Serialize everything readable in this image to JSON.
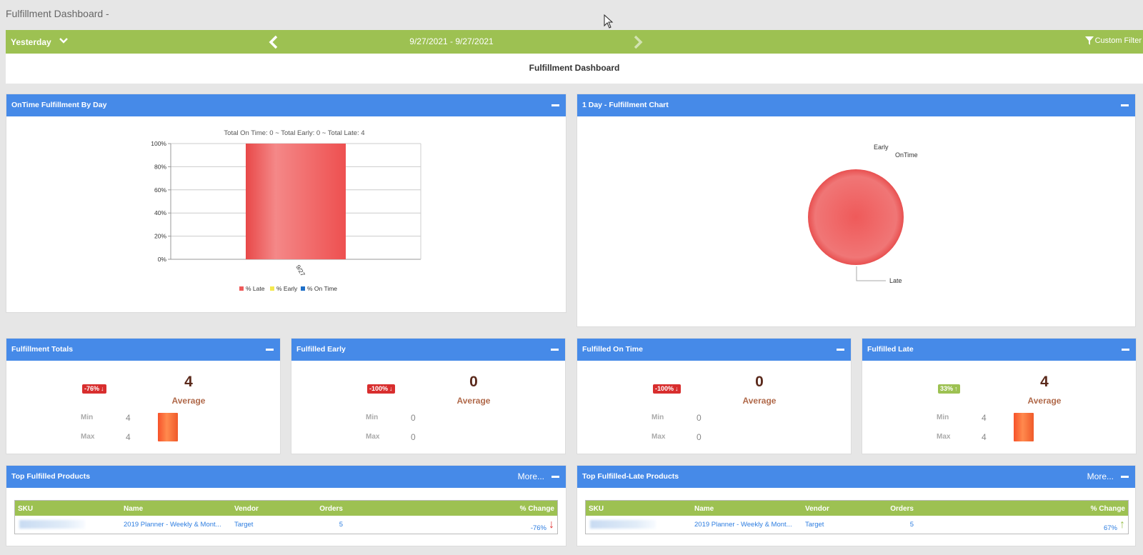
{
  "page_title": "Fulfillment Dashboard -",
  "filter_bar": {
    "range_label": "Yesterday",
    "date_range": "9/27/2021 - 9/27/2021",
    "custom_filter": "Custom Filter"
  },
  "dashboard_title": "Fulfillment Dashboard",
  "ontime_panel": {
    "title": "OnTime Fulfillment By Day",
    "chart_title": "Total On Time: 0 ~ Total Early: 0 ~ Total Late: 4"
  },
  "pie_panel": {
    "title": "1 Day - Fulfillment Chart"
  },
  "chart_data": [
    {
      "type": "bar",
      "title": "Total On Time: 0 ~ Total Early: 0 ~ Total Late: 4",
      "categories": [
        "9/27"
      ],
      "series": [
        {
          "name": "% Late",
          "values": [
            100
          ],
          "color": "#ef5a5a"
        },
        {
          "name": "% Early",
          "values": [
            0
          ],
          "color": "#f4e94e"
        },
        {
          "name": "% On Time",
          "values": [
            0
          ],
          "color": "#1e6fc8"
        }
      ],
      "stacked": true,
      "ylim": [
        0,
        100
      ],
      "yticks": [
        "0%",
        "20%",
        "40%",
        "60%",
        "80%",
        "100%"
      ],
      "grid": true,
      "legend": "bottom"
    },
    {
      "type": "pie",
      "labels": [
        "Early",
        "OnTime",
        "Late"
      ],
      "values": [
        0,
        0,
        4
      ],
      "colors": [
        "#f4e94e",
        "#1e6fc8",
        "#ef5a5a"
      ]
    }
  ],
  "stats": [
    {
      "title": "Fulfillment Totals",
      "badge": "-76%",
      "arrow": "↓",
      "badge_color": "red",
      "value": "4",
      "avg_label": "Average",
      "min_label": "Min",
      "min": "4",
      "max_label": "Max",
      "max": "4",
      "bar": true
    },
    {
      "title": "Fulfilled Early",
      "badge": "-100%",
      "arrow": "↓",
      "badge_color": "red",
      "value": "0",
      "avg_label": "Average",
      "min_label": "Min",
      "min": "0",
      "max_label": "Max",
      "max": "0",
      "bar": false
    },
    {
      "title": "Fulfilled On Time",
      "badge": "-100%",
      "arrow": "↓",
      "badge_color": "red",
      "value": "0",
      "avg_label": "Average",
      "min_label": "Min",
      "min": "0",
      "max_label": "Max",
      "max": "0",
      "bar": false
    },
    {
      "title": "Fulfilled Late",
      "badge": "33%",
      "arrow": "↑",
      "badge_color": "green",
      "value": "4",
      "avg_label": "Average",
      "min_label": "Min",
      "min": "4",
      "max_label": "Max",
      "max": "4",
      "bar": true
    }
  ],
  "top_products": {
    "title": "Top Fulfilled Products",
    "more": "More...",
    "columns": [
      "SKU",
      "Name",
      "Orders",
      "Vendor",
      "% Change"
    ],
    "rows": [
      {
        "name": "2019 Planner - Weekly & Mont...",
        "orders": "5",
        "vendor": "Target",
        "change": "-76%",
        "arrow": "↓",
        "arrow_color": "#e03232"
      }
    ]
  },
  "top_late_products": {
    "title": "Top Fulfilled-Late Products",
    "more": "More...",
    "columns": [
      "SKU",
      "Name",
      "Orders",
      "Vendor",
      "% Change"
    ],
    "rows": [
      {
        "name": "2019 Planner - Weekly & Mont...",
        "orders": "5",
        "vendor": "Target",
        "change": "67%",
        "arrow": "↑",
        "arrow_color": "#9dc152"
      }
    ]
  },
  "icons": [
    "chevron-down-icon",
    "chevron-left-icon",
    "chevron-right-icon",
    "filter-icon",
    "minus-icon",
    "arrow-cursor-icon"
  ]
}
